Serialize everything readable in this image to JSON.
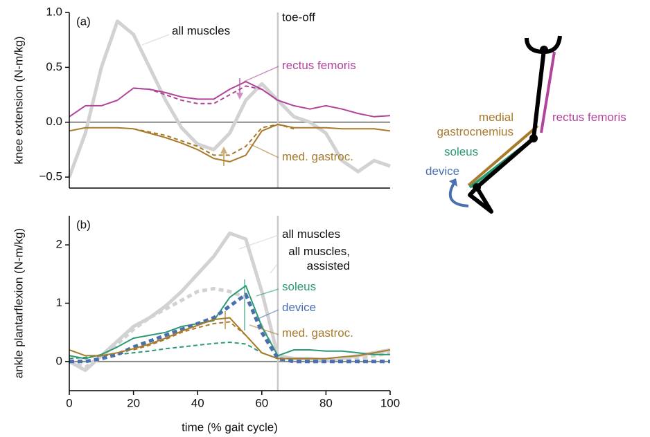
{
  "chart_data": [
    {
      "type": "line",
      "panel_label": "(a)",
      "y_label": "knee extension (N-m/kg)",
      "x": [
        0,
        5,
        10,
        15,
        20,
        25,
        30,
        35,
        40,
        45,
        50,
        55,
        60,
        65,
        70,
        75,
        80,
        85,
        90,
        95,
        100
      ],
      "xlim": [
        0,
        100
      ],
      "ylim": [
        -0.6,
        1.0
      ],
      "yticks": [
        {
          "value": 1,
          "label": "1.0"
        },
        0.5,
        {
          "value": 0,
          "label": "0.0"
        },
        {
          "value": -0.5,
          "label": "−0.5"
        }
      ],
      "vline_x": 65,
      "vline_label": "toe-off",
      "series": [
        {
          "name": "all muscles",
          "color": "#d2d2d2",
          "label_color": "#111111",
          "line_style": "thick",
          "values": [
            -0.5,
            -0.1,
            0.5,
            0.92,
            0.8,
            0.5,
            0.2,
            -0.05,
            -0.2,
            -0.25,
            -0.1,
            0.2,
            0.35,
            0.2,
            0.05,
            0.0,
            -0.1,
            -0.35,
            -0.45,
            -0.35,
            -0.4
          ]
        },
        {
          "name": "rectus femoris",
          "color": "#b0449a",
          "line_style": "solid",
          "values": [
            0.05,
            0.15,
            0.15,
            0.2,
            0.31,
            0.3,
            0.27,
            0.23,
            0.21,
            0.21,
            0.3,
            0.37,
            0.3,
            0.2,
            0.15,
            0.12,
            0.15,
            0.12,
            0.08,
            0.05,
            0.06
          ]
        },
        {
          "color": "#b0449a",
          "line_style": "dashed",
          "values": [
            null,
            null,
            null,
            null,
            0.31,
            0.3,
            0.25,
            0.2,
            0.17,
            0.17,
            0.25,
            0.33,
            0.3,
            0.2,
            null,
            null,
            null,
            null,
            null,
            null,
            null
          ]
        },
        {
          "name": "med. gastroc.",
          "color": "#a87a2a",
          "line_style": "solid",
          "values": [
            -0.08,
            -0.05,
            -0.05,
            -0.05,
            -0.06,
            -0.1,
            -0.14,
            -0.19,
            -0.25,
            -0.33,
            -0.36,
            -0.3,
            -0.08,
            -0.02,
            -0.05,
            -0.05,
            -0.05,
            -0.06,
            -0.06,
            -0.06,
            -0.08
          ]
        },
        {
          "color": "#a87a2a",
          "line_style": "dashed",
          "values": [
            null,
            null,
            null,
            null,
            -0.06,
            -0.09,
            -0.12,
            -0.17,
            -0.22,
            -0.3,
            -0.3,
            -0.22,
            -0.05,
            -0.02,
            -0.06,
            null,
            null,
            null,
            null,
            null,
            null
          ]
        }
      ]
    },
    {
      "type": "line",
      "panel_label": "(b)",
      "y_label": "ankle plantarflexion (N-m/kg)",
      "x_label": "time (% gait cycle)",
      "x": [
        0,
        5,
        10,
        15,
        20,
        25,
        30,
        35,
        40,
        45,
        50,
        55,
        60,
        65,
        70,
        75,
        80,
        85,
        90,
        95,
        100
      ],
      "xlim": [
        0,
        100
      ],
      "xticks": [
        0,
        20,
        40,
        60,
        80,
        100
      ],
      "ylim": [
        -0.5,
        2.5
      ],
      "yticks": [
        0,
        1,
        2
      ],
      "vline_x": 65,
      "series": [
        {
          "name": "all muscles",
          "color": "#d2d2d2",
          "label_color": "#111111",
          "line_style": "thick",
          "values": [
            0.0,
            -0.15,
            0.1,
            0.35,
            0.6,
            0.75,
            0.95,
            1.2,
            1.5,
            1.8,
            2.2,
            2.1,
            1.2,
            0.1,
            0.05,
            0.05,
            0.02,
            0.05,
            0.1,
            0.15,
            0.2
          ]
        },
        {
          "name": "all muscles, assisted",
          "color": "#d2d2d2",
          "label_color": "#111111",
          "line_style": "thick-dashed",
          "values": [
            0.0,
            -0.1,
            0.1,
            0.3,
            0.55,
            0.75,
            0.9,
            1.05,
            1.2,
            1.25,
            1.2,
            1.1,
            0.6,
            0.05,
            0.0,
            0.0,
            0.0,
            0.0,
            0.05,
            0.1,
            0.15
          ]
        },
        {
          "name": "soleus",
          "color": "#2a9a72",
          "line_style": "solid",
          "values": [
            0.1,
            0.05,
            0.12,
            0.25,
            0.4,
            0.45,
            0.5,
            0.6,
            0.65,
            0.7,
            1.1,
            1.3,
            0.6,
            0.1,
            0.2,
            0.2,
            0.18,
            0.18,
            0.15,
            0.12,
            0.12
          ]
        },
        {
          "color": "#2a9a72",
          "line_style": "dashed",
          "values": [
            0.05,
            0.07,
            0.1,
            0.12,
            0.15,
            0.18,
            0.22,
            0.25,
            0.28,
            0.31,
            0.33,
            0.3,
            0.15,
            0.05,
            0.05,
            null,
            null,
            null,
            null,
            null,
            null
          ]
        },
        {
          "name": "device",
          "color": "#4a6fb0",
          "line_style": "thick-dashed",
          "values": [
            0.0,
            0.0,
            0.05,
            0.12,
            0.25,
            0.35,
            0.45,
            0.55,
            0.65,
            0.75,
            0.95,
            1.15,
            0.5,
            0.05,
            0.0,
            0.0,
            0.0,
            0.0,
            0.0,
            0.0,
            0.0
          ]
        },
        {
          "name": "med. gastroc.",
          "color": "#a87a2a",
          "line_style": "solid",
          "values": [
            0.2,
            0.1,
            0.1,
            0.15,
            0.22,
            0.3,
            0.4,
            0.52,
            0.62,
            0.72,
            0.75,
            0.45,
            0.15,
            0.05,
            0.05,
            0.05,
            0.05,
            0.08,
            0.1,
            0.15,
            0.2
          ]
        },
        {
          "color": "#a87a2a",
          "line_style": "dashed",
          "values": [
            null,
            null,
            null,
            null,
            0.2,
            0.28,
            0.38,
            0.5,
            0.58,
            0.65,
            0.68,
            0.45,
            0.15,
            0.05,
            null,
            null,
            null,
            null,
            null,
            null,
            null
          ]
        }
      ]
    }
  ],
  "diagram": {
    "labels": [
      {
        "text": "rectus femoris",
        "color": "#b0449a"
      },
      {
        "text": "medial gastrocnemius",
        "color": "#a87a2a"
      },
      {
        "text": "soleus",
        "color": "#2a9a72"
      },
      {
        "text": "device",
        "color": "#4a6fb0"
      }
    ]
  }
}
